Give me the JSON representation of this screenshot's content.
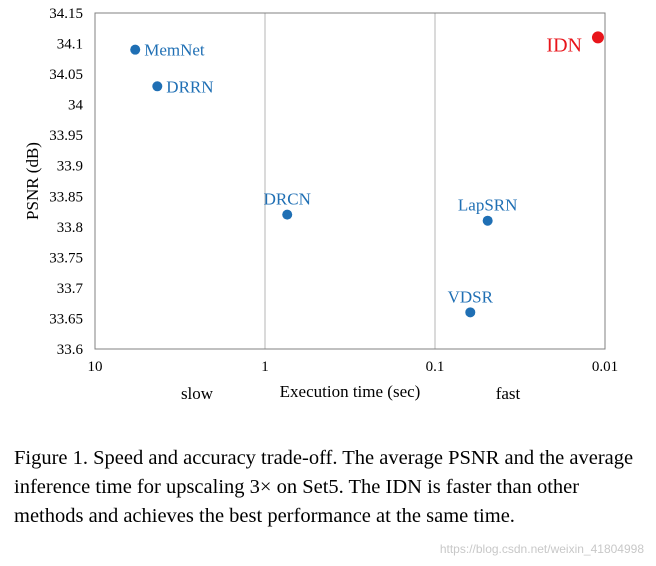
{
  "chart_data": {
    "type": "scatter",
    "title": "",
    "xlabel": "Execution time (sec)",
    "ylabel": "PSNR (dB)",
    "x_scale": "log",
    "x_reversed": true,
    "xlim": [
      10,
      0.01
    ],
    "ylim": [
      33.6,
      34.15
    ],
    "x_ticks": [
      {
        "value": 10,
        "label": "10"
      },
      {
        "value": 1,
        "label": "1"
      },
      {
        "value": 0.1,
        "label": "0.1"
      },
      {
        "value": 0.01,
        "label": "0.01"
      }
    ],
    "y_ticks": [
      {
        "value": 33.6,
        "label": "33.6"
      },
      {
        "value": 33.65,
        "label": "33.65"
      },
      {
        "value": 33.7,
        "label": "33.7"
      },
      {
        "value": 33.75,
        "label": "33.75"
      },
      {
        "value": 33.8,
        "label": "33.8"
      },
      {
        "value": 33.85,
        "label": "33.85"
      },
      {
        "value": 33.9,
        "label": "33.9"
      },
      {
        "value": 33.95,
        "label": "33.95"
      },
      {
        "value": 34,
        "label": "34"
      },
      {
        "value": 34.05,
        "label": "34.05"
      },
      {
        "value": 34.1,
        "label": "34.1"
      },
      {
        "value": 34.15,
        "label": "34.15"
      }
    ],
    "slow_label": "slow",
    "fast_label": "fast",
    "grid": "vertical",
    "points": [
      {
        "name": "MemNet",
        "x": 5.8,
        "y": 34.09,
        "color": "#1f6fb4",
        "label_pos": "right"
      },
      {
        "name": "DRRN",
        "x": 4.3,
        "y": 34.03,
        "color": "#1f6fb4",
        "label_pos": "right"
      },
      {
        "name": "DRCN",
        "x": 0.74,
        "y": 33.82,
        "color": "#1f6fb4",
        "label_pos": "above"
      },
      {
        "name": "LapSRN",
        "x": 0.049,
        "y": 33.81,
        "color": "#1f6fb4",
        "label_pos": "above"
      },
      {
        "name": "VDSR",
        "x": 0.062,
        "y": 33.66,
        "color": "#1f6fb4",
        "label_pos": "above"
      },
      {
        "name": "IDN",
        "x": 0.011,
        "y": 34.11,
        "color": "#e8151b",
        "label_pos": "left"
      }
    ]
  },
  "caption": "Figure 1. Speed and accuracy trade-off.  The average PSNR and the average inference time for upscaling 3× on Set5. The IDN is faster than other methods and achieves the best performance at the same time.",
  "watermark": "https://blog.csdn.net/weixin_41804998"
}
